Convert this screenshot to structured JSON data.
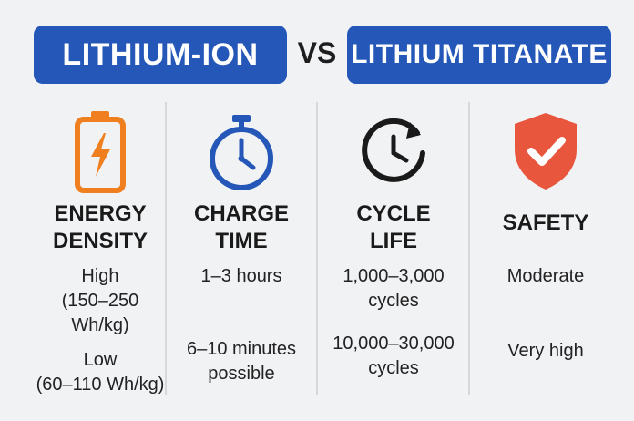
{
  "header": {
    "left_label": "LITHIUM-ION",
    "vs_label": "VS",
    "right_label": "LITHIUM TITANATE"
  },
  "columns": [
    {
      "icon": "battery-charging-icon",
      "heading_line1": "ENERGY",
      "heading_line2": "DENSITY",
      "li_ion": "High (150–250 Wh/kg)",
      "li_ion_lines": [
        "High",
        "(150–250",
        "Wh/kg)"
      ],
      "lto": "Low (60–110 Wh/kg)",
      "lto_lines": [
        "Low",
        "(60–110 Wh/kg)"
      ]
    },
    {
      "icon": "stopwatch-icon",
      "heading_line1": "CHARGE",
      "heading_line2": "TIME",
      "li_ion": "1–3 hours",
      "lto_lines": [
        "6–10 minutes",
        "possible"
      ]
    },
    {
      "icon": "cycle-clock-icon",
      "heading_line1": "CYCLE",
      "heading_line2": "LIFE",
      "li_ion_lines": [
        "1,000–3,000",
        "cycles"
      ],
      "lto_lines": [
        "10,000–30,000",
        "cycles"
      ]
    },
    {
      "icon": "shield-check-icon",
      "heading_line1": "SAFETY",
      "li_ion": "Moderate",
      "lto": "Very high"
    }
  ],
  "colors": {
    "header_blue": "#2457b8",
    "battery_orange": "#f0801f",
    "stopwatch_blue": "#2457b8",
    "shield_red": "#e8573d",
    "background": "#f1f2f4"
  }
}
